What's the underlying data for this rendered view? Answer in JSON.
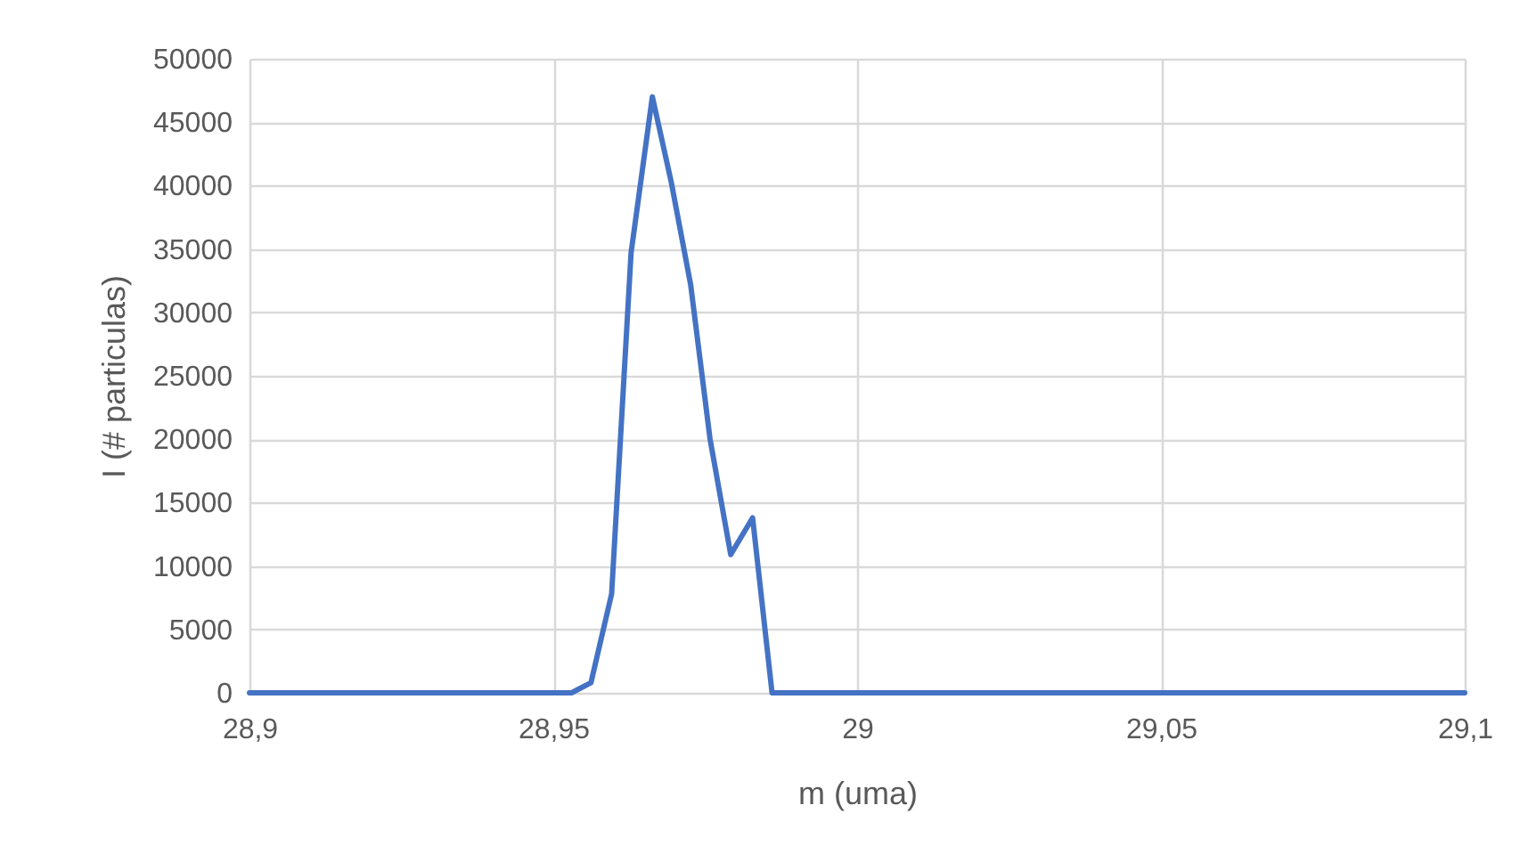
{
  "chart_data": {
    "type": "line",
    "xlabel": "m (uma)",
    "ylabel": "I (# particulas)",
    "x": [
      28.9,
      28.953,
      28.9562,
      28.9596,
      28.9628,
      28.9663,
      28.9694,
      28.9726,
      28.9758,
      28.9792,
      28.9828,
      28.986,
      29.1
    ],
    "series": [
      {
        "color": "#4472c4",
        "values": [
          0,
          0,
          800,
          7800,
          34700,
          47000,
          40300,
          32200,
          20000,
          10900,
          13800,
          0,
          0
        ]
      }
    ],
    "xlim": [
      28.9,
      29.1
    ],
    "xticks": [
      {
        "value": 28.9,
        "label": "28,9"
      },
      {
        "value": 28.95,
        "label": "28,95"
      },
      {
        "value": 29,
        "label": "29"
      },
      {
        "value": 29.05,
        "label": "29,05"
      },
      {
        "value": 29.1,
        "label": "29,1"
      }
    ],
    "ylim": [
      0,
      50000
    ],
    "yticks": [
      0,
      5000,
      10000,
      15000,
      20000,
      25000,
      30000,
      35000,
      40000,
      45000,
      50000
    ],
    "grid": true,
    "legend": false,
    "marker": "none",
    "line_style": "solid"
  }
}
